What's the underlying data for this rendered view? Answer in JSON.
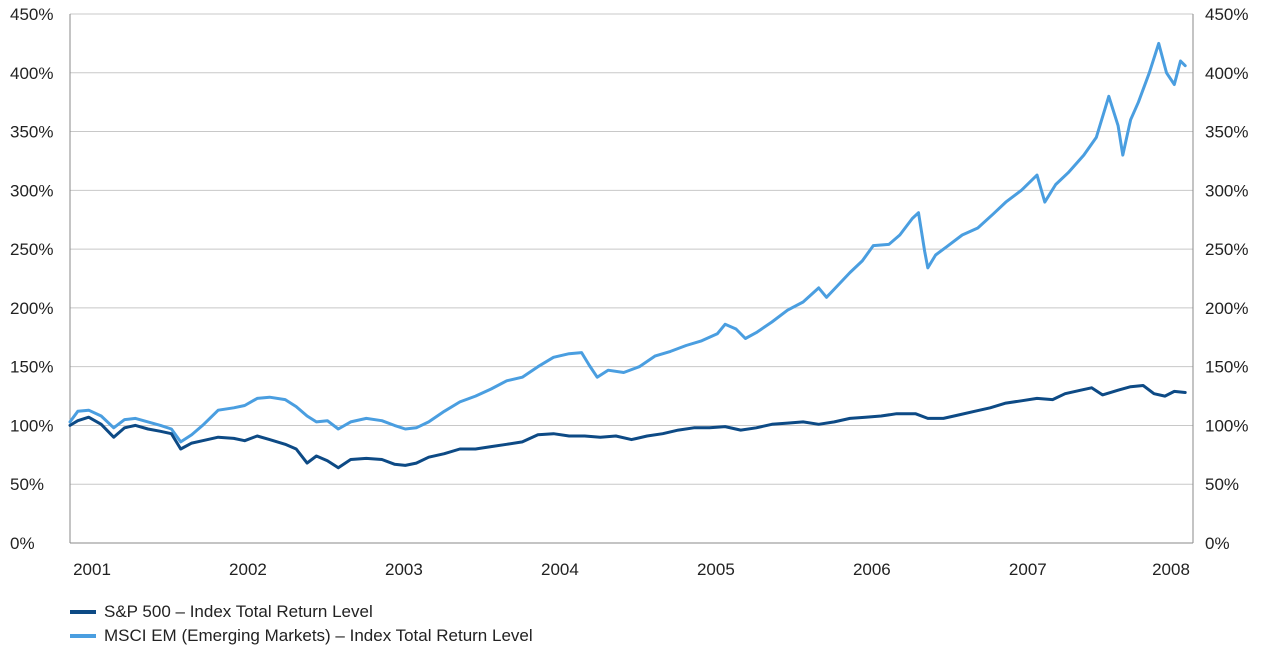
{
  "chart_data": {
    "type": "line",
    "title": "",
    "xlabel": "",
    "ylabel": "",
    "x_ticks": [
      "2001",
      "2002",
      "2003",
      "2004",
      "2005",
      "2006",
      "2007",
      "2008"
    ],
    "y_ticks_left": [
      "0%",
      "50%",
      "100%",
      "150%",
      "200%",
      "250%",
      "300%",
      "350%",
      "400%",
      "450%"
    ],
    "y_ticks_right": [
      "0%",
      "50%",
      "100%",
      "150%",
      "200%",
      "250%",
      "300%",
      "350%",
      "400%",
      "450%"
    ],
    "ylim": [
      0,
      450
    ],
    "xlim": [
      2001.0,
      2008.2
    ],
    "grid": "horizontal",
    "legend_position": "bottom-left",
    "series": [
      {
        "name": "S&P 500 – Index Total Return Level",
        "color": "#0d4a85",
        "points": [
          [
            2001.0,
            100
          ],
          [
            2001.05,
            104
          ],
          [
            2001.12,
            107
          ],
          [
            2001.2,
            101
          ],
          [
            2001.28,
            90
          ],
          [
            2001.35,
            98
          ],
          [
            2001.42,
            100
          ],
          [
            2001.5,
            97
          ],
          [
            2001.58,
            95
          ],
          [
            2001.65,
            93
          ],
          [
            2001.71,
            80
          ],
          [
            2001.78,
            85
          ],
          [
            2001.85,
            87
          ],
          [
            2001.95,
            90
          ],
          [
            2002.05,
            89
          ],
          [
            2002.12,
            87
          ],
          [
            2002.2,
            91
          ],
          [
            2002.28,
            88
          ],
          [
            2002.38,
            84
          ],
          [
            2002.45,
            80
          ],
          [
            2002.52,
            68
          ],
          [
            2002.58,
            74
          ],
          [
            2002.65,
            70
          ],
          [
            2002.72,
            64
          ],
          [
            2002.8,
            71
          ],
          [
            2002.9,
            72
          ],
          [
            2003.0,
            71
          ],
          [
            2003.08,
            67
          ],
          [
            2003.15,
            66
          ],
          [
            2003.22,
            68
          ],
          [
            2003.3,
            73
          ],
          [
            2003.4,
            76
          ],
          [
            2003.5,
            80
          ],
          [
            2003.6,
            80
          ],
          [
            2003.7,
            82
          ],
          [
            2003.8,
            84
          ],
          [
            2003.9,
            86
          ],
          [
            2004.0,
            92
          ],
          [
            2004.1,
            93
          ],
          [
            2004.2,
            91
          ],
          [
            2004.3,
            91
          ],
          [
            2004.4,
            90
          ],
          [
            2004.5,
            91
          ],
          [
            2004.6,
            88
          ],
          [
            2004.7,
            91
          ],
          [
            2004.8,
            93
          ],
          [
            2004.9,
            96
          ],
          [
            2005.0,
            98
          ],
          [
            2005.1,
            98
          ],
          [
            2005.2,
            99
          ],
          [
            2005.3,
            96
          ],
          [
            2005.4,
            98
          ],
          [
            2005.5,
            101
          ],
          [
            2005.6,
            102
          ],
          [
            2005.7,
            103
          ],
          [
            2005.8,
            101
          ],
          [
            2005.9,
            103
          ],
          [
            2006.0,
            106
          ],
          [
            2006.1,
            107
          ],
          [
            2006.2,
            108
          ],
          [
            2006.3,
            110
          ],
          [
            2006.42,
            110
          ],
          [
            2006.5,
            106
          ],
          [
            2006.6,
            106
          ],
          [
            2006.7,
            109
          ],
          [
            2006.8,
            112
          ],
          [
            2006.9,
            115
          ],
          [
            2007.0,
            119
          ],
          [
            2007.1,
            121
          ],
          [
            2007.2,
            123
          ],
          [
            2007.3,
            122
          ],
          [
            2007.38,
            127
          ],
          [
            2007.48,
            130
          ],
          [
            2007.55,
            132
          ],
          [
            2007.62,
            126
          ],
          [
            2007.72,
            130
          ],
          [
            2007.8,
            133
          ],
          [
            2007.88,
            134
          ],
          [
            2007.95,
            127
          ],
          [
            2008.02,
            125
          ],
          [
            2008.08,
            129
          ],
          [
            2008.15,
            128
          ]
        ]
      },
      {
        "name": "MSCI EM (Emerging Markets) – Index Total Return Level",
        "color": "#4a9ee0",
        "points": [
          [
            2001.0,
            103
          ],
          [
            2001.05,
            112
          ],
          [
            2001.12,
            113
          ],
          [
            2001.2,
            108
          ],
          [
            2001.28,
            98
          ],
          [
            2001.35,
            105
          ],
          [
            2001.42,
            106
          ],
          [
            2001.5,
            103
          ],
          [
            2001.58,
            100
          ],
          [
            2001.65,
            97
          ],
          [
            2001.71,
            86
          ],
          [
            2001.78,
            92
          ],
          [
            2001.85,
            100
          ],
          [
            2001.95,
            113
          ],
          [
            2002.05,
            115
          ],
          [
            2002.12,
            117
          ],
          [
            2002.2,
            123
          ],
          [
            2002.28,
            124
          ],
          [
            2002.38,
            122
          ],
          [
            2002.45,
            116
          ],
          [
            2002.52,
            108
          ],
          [
            2002.58,
            103
          ],
          [
            2002.65,
            104
          ],
          [
            2002.72,
            97
          ],
          [
            2002.8,
            103
          ],
          [
            2002.9,
            106
          ],
          [
            2003.0,
            104
          ],
          [
            2003.08,
            100
          ],
          [
            2003.15,
            97
          ],
          [
            2003.22,
            98
          ],
          [
            2003.3,
            103
          ],
          [
            2003.4,
            112
          ],
          [
            2003.5,
            120
          ],
          [
            2003.6,
            125
          ],
          [
            2003.7,
            131
          ],
          [
            2003.8,
            138
          ],
          [
            2003.9,
            141
          ],
          [
            2004.0,
            150
          ],
          [
            2004.1,
            158
          ],
          [
            2004.2,
            161
          ],
          [
            2004.28,
            162
          ],
          [
            2004.33,
            151
          ],
          [
            2004.38,
            141
          ],
          [
            2004.45,
            147
          ],
          [
            2004.55,
            145
          ],
          [
            2004.65,
            150
          ],
          [
            2004.75,
            159
          ],
          [
            2004.85,
            163
          ],
          [
            2004.95,
            168
          ],
          [
            2005.05,
            172
          ],
          [
            2005.15,
            178
          ],
          [
            2005.2,
            186
          ],
          [
            2005.27,
            182
          ],
          [
            2005.33,
            174
          ],
          [
            2005.4,
            179
          ],
          [
            2005.5,
            188
          ],
          [
            2005.6,
            198
          ],
          [
            2005.7,
            205
          ],
          [
            2005.8,
            217
          ],
          [
            2005.85,
            209
          ],
          [
            2005.9,
            216
          ],
          [
            2006.0,
            230
          ],
          [
            2006.08,
            240
          ],
          [
            2006.15,
            253
          ],
          [
            2006.25,
            254
          ],
          [
            2006.32,
            262
          ],
          [
            2006.4,
            276
          ],
          [
            2006.44,
            281
          ],
          [
            2006.48,
            248
          ],
          [
            2006.5,
            234
          ],
          [
            2006.55,
            245
          ],
          [
            2006.62,
            252
          ],
          [
            2006.72,
            262
          ],
          [
            2006.82,
            268
          ],
          [
            2006.92,
            280
          ],
          [
            2007.0,
            290
          ],
          [
            2007.1,
            300
          ],
          [
            2007.2,
            313
          ],
          [
            2007.25,
            290
          ],
          [
            2007.32,
            305
          ],
          [
            2007.4,
            315
          ],
          [
            2007.5,
            330
          ],
          [
            2007.58,
            345
          ],
          [
            2007.66,
            380
          ],
          [
            2007.72,
            355
          ],
          [
            2007.75,
            330
          ],
          [
            2007.8,
            360
          ],
          [
            2007.85,
            375
          ],
          [
            2007.92,
            400
          ],
          [
            2007.98,
            425
          ],
          [
            2008.03,
            400
          ],
          [
            2008.08,
            390
          ],
          [
            2008.12,
            410
          ],
          [
            2008.15,
            406
          ]
        ]
      }
    ]
  }
}
